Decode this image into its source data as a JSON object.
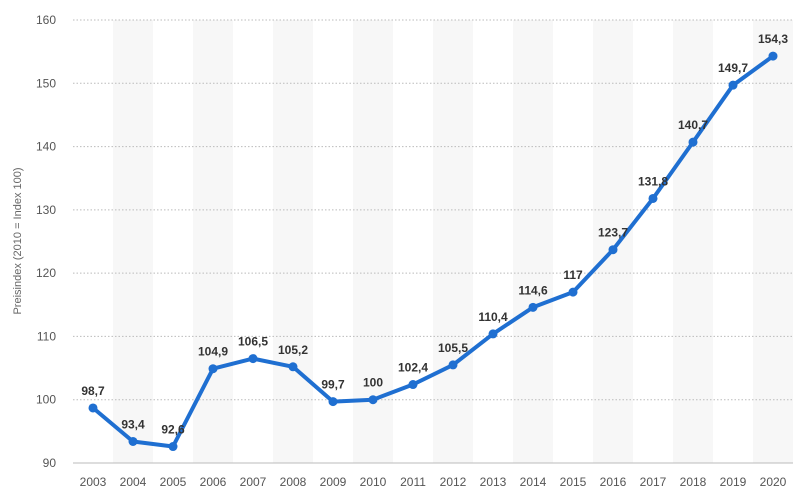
{
  "chart_data": {
    "type": "line",
    "title": "",
    "xlabel": "",
    "ylabel": "Preisindex (2010 = Index 100)",
    "categories": [
      "2003",
      "2004",
      "2005",
      "2006",
      "2007",
      "2008",
      "2009",
      "2010",
      "2011",
      "2012",
      "2013",
      "2014",
      "2015",
      "2016",
      "2017",
      "2018",
      "2019",
      "2020"
    ],
    "series": [
      {
        "values": [
          98.7,
          93.4,
          92.6,
          104.9,
          106.5,
          105.2,
          99.7,
          100,
          102.4,
          105.5,
          110.4,
          114.6,
          117,
          123.7,
          131.8,
          140.7,
          149.7,
          154.3
        ],
        "labels": [
          "98,7",
          "93,4",
          "92,6",
          "104,9",
          "106,5",
          "105,2",
          "99,7",
          "100",
          "102,4",
          "105,5",
          "110,4",
          "114,6",
          "117",
          "123,7",
          "131,8",
          "140,7",
          "149,7",
          "154,3"
        ]
      }
    ],
    "ylim": [
      90,
      160
    ],
    "yticks": [
      90,
      100,
      110,
      120,
      130,
      140,
      150,
      160
    ],
    "grid": true,
    "colors": {
      "line": "#1f6fd1",
      "band": "#f7f7f7",
      "grid": "#bbbbbb"
    }
  }
}
